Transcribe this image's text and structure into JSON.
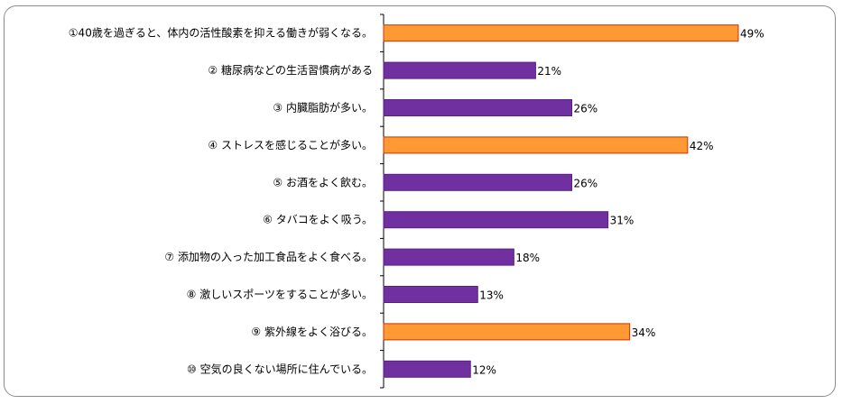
{
  "chart_data": {
    "type": "bar",
    "orientation": "horizontal",
    "categories": [
      "①40歳を過ぎると、体内の活性酸素を抑える働きが弱くなる。",
      "② 糖尿病などの生活習慣病がある",
      "③ 内臓脂肪が多い。",
      "④ ストレスを感じることが多い。",
      "⑤ お酒をよく飲む。",
      "⑥ タバコをよく吸う。",
      "⑦ 添加物の入った加工食品をよく食べる。",
      "⑧ 激しいスポーツをすることが多い。",
      "⑨ 紫外線をよく浴びる。",
      "⑩ 空気の良くない場所に住んでいる。"
    ],
    "values": [
      49,
      21,
      26,
      42,
      26,
      31,
      18,
      13,
      34,
      12
    ],
    "value_labels": [
      "49%",
      "21%",
      "26%",
      "42%",
      "26%",
      "31%",
      "18%",
      "13%",
      "34%",
      "12%"
    ],
    "highlight": [
      true,
      false,
      false,
      true,
      false,
      false,
      false,
      false,
      true,
      false
    ],
    "xlim": [
      0,
      50
    ],
    "grid": false,
    "legend": "none",
    "colors": {
      "highlight_fill": "#ff9933",
      "highlight_stroke": "#cc3300",
      "normal_fill": "#7030a0",
      "normal_stroke": "#5a2080",
      "axis": "#000000",
      "frame": "#8c8c8c"
    }
  }
}
